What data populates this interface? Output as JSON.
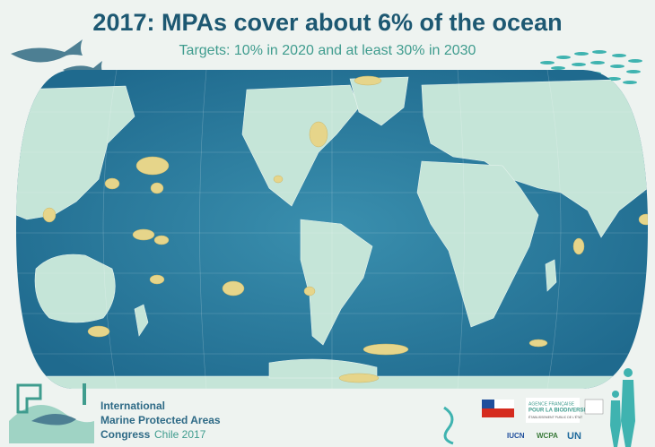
{
  "header": {
    "title": "2017: MPAs cover about 6% of the ocean",
    "subtitle": "Targets: 10% in 2020 and at least 30% in 2030"
  },
  "congress": {
    "line1": "International",
    "line2": "Marine Protected Areas",
    "line3a": "Congress",
    "line3b": "Chile 2017"
  },
  "partners": {
    "afb": [
      "AGENCE FRANÇAISE",
      "POUR LA BIODIVERSITÉ",
      "ÉTABLISSEMENT PUBLIC DE L'ÉTAT"
    ],
    "iucn": "IUCN",
    "wcpa": "WCPA",
    "un": "UN"
  }
}
